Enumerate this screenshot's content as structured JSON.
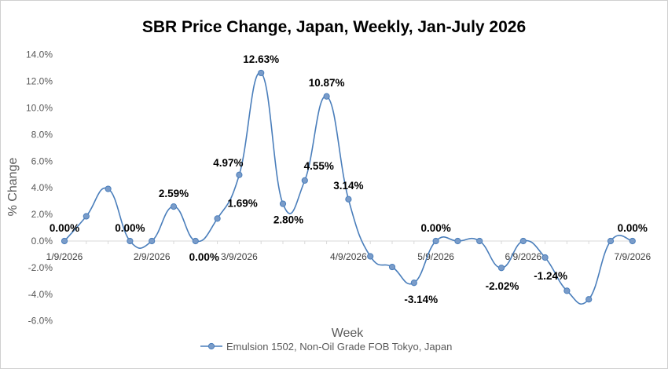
{
  "chart_data": {
    "type": "line",
    "title": "SBR Price Change, Japan, Weekly, Jan-July 2026",
    "xlabel": "Week",
    "ylabel": "% Change",
    "ylim": [
      -6,
      14
    ],
    "y_ticks": [
      "14.0%",
      "12.0%",
      "10.0%",
      "8.0%",
      "6.0%",
      "4.0%",
      "2.0%",
      "0.0%",
      "-2.0%",
      "-4.0%",
      "-6.0%"
    ],
    "x_tick_labels": [
      {
        "week": 0,
        "label": "1/9/2026"
      },
      {
        "week": 4,
        "label": "2/9/2026"
      },
      {
        "week": 8,
        "label": "3/9/2026"
      },
      {
        "week": 13,
        "label": "4/9/2026"
      },
      {
        "week": 17,
        "label": "5/9/2026"
      },
      {
        "week": 21,
        "label": "6/9/2026"
      },
      {
        "week": 26,
        "label": "7/9/2026"
      }
    ],
    "series": [
      {
        "name": "Emulsion 1502, Non-Oil Grade FOB Tokyo, Japan",
        "color": "#4a7ebb",
        "marker_fill": "#7a9cc9",
        "values": [
          0.0,
          1.86,
          3.92,
          0.0,
          0.0,
          2.59,
          0.0,
          1.69,
          4.97,
          12.63,
          2.8,
          4.55,
          10.87,
          3.14,
          -1.15,
          -1.95,
          -3.14,
          0.0,
          0.0,
          0.0,
          -2.02,
          0.0,
          -1.24,
          -3.74,
          -4.38,
          0.0,
          0.0
        ]
      }
    ],
    "data_labels": [
      {
        "week": 0,
        "text": "0.00%"
      },
      {
        "week": 3,
        "text": "0.00%"
      },
      {
        "week": 5,
        "text": "2.59%"
      },
      {
        "week": 6,
        "text": "0.00%"
      },
      {
        "week": 7,
        "text": "1.69%"
      },
      {
        "week": 8,
        "text": "4.97%"
      },
      {
        "week": 9,
        "text": "12.63%"
      },
      {
        "week": 10,
        "text": "2.80%"
      },
      {
        "week": 11,
        "text": "4.55%"
      },
      {
        "week": 12,
        "text": "10.87%"
      },
      {
        "week": 13,
        "text": "3.14%"
      },
      {
        "week": 16,
        "text": "-3.14%"
      },
      {
        "week": 17,
        "text": "0.00%"
      },
      {
        "week": 20,
        "text": "-2.02%"
      },
      {
        "week": 22,
        "text": "-1.24%"
      },
      {
        "week": 26,
        "text": "0.00%"
      }
    ],
    "grid": false,
    "legend": "bottom"
  }
}
